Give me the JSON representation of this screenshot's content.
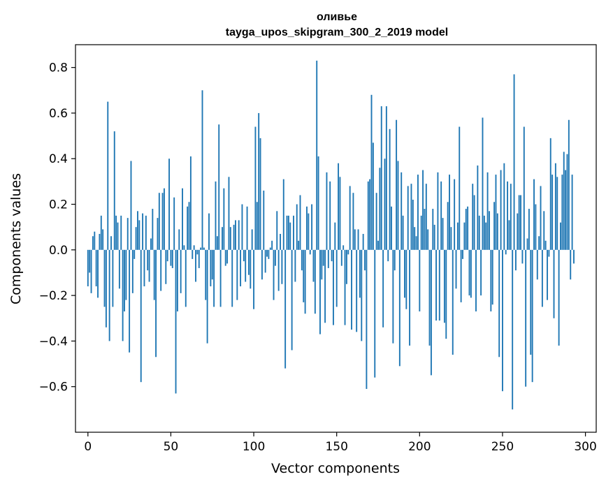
{
  "chart_data": {
    "type": "bar",
    "title": "оливье",
    "subtitle": "tayga_upos_skipgram_300_2_2019 model",
    "xlabel": "Vector components",
    "ylabel": "Components values",
    "xlim": [
      -7.5,
      306.5
    ],
    "ylim": [
      -0.8,
      0.9
    ],
    "xticks": [
      0,
      50,
      100,
      150,
      200,
      250,
      300
    ],
    "xtick_labels": [
      "0",
      "50",
      "100",
      "150",
      "200",
      "250",
      "300"
    ],
    "yticks": [
      -0.6,
      -0.4,
      -0.2,
      0.0,
      0.2,
      0.4,
      0.6,
      0.8
    ],
    "ytick_labels": [
      "−0.6",
      "−0.4",
      "−0.2",
      "0.0",
      "0.2",
      "0.4",
      "0.6",
      "0.8"
    ],
    "bar_color": "#1f77b4",
    "grid": false,
    "values": [
      -0.16,
      -0.1,
      -0.19,
      0.06,
      0.08,
      -0.16,
      -0.21,
      0.07,
      0.15,
      0.09,
      -0.25,
      -0.34,
      0.65,
      -0.4,
      0.06,
      -0.25,
      0.52,
      0.15,
      0.12,
      -0.17,
      0.15,
      -0.4,
      -0.27,
      -0.22,
      0.14,
      -0.45,
      0.39,
      -0.19,
      -0.04,
      0.1,
      0.17,
      0.13,
      -0.58,
      0.16,
      -0.16,
      0.15,
      -0.09,
      -0.14,
      0.05,
      0.18,
      -0.22,
      -0.47,
      0.14,
      0.25,
      -0.18,
      0.25,
      0.27,
      -0.15,
      -0.05,
      0.4,
      -0.07,
      -0.08,
      0.23,
      -0.63,
      -0.27,
      0.09,
      -0.19,
      0.27,
      0.02,
      -0.25,
      0.19,
      0.21,
      0.41,
      -0.04,
      0.02,
      -0.14,
      -0.02,
      -0.08,
      0.01,
      0.7,
      0.01,
      -0.22,
      -0.41,
      0.16,
      -0.16,
      -0.13,
      -0.25,
      0.3,
      0.06,
      0.55,
      -0.25,
      0.1,
      0.27,
      -0.07,
      -0.06,
      0.32,
      0.1,
      -0.25,
      0.11,
      0.13,
      -0.22,
      0.13,
      -0.16,
      0.2,
      -0.05,
      -0.14,
      0.19,
      -0.11,
      -0.17,
      0.09,
      -0.26,
      0.54,
      0.21,
      0.6,
      0.49,
      -0.13,
      0.26,
      -0.1,
      -0.03,
      -0.04,
      0.01,
      0.04,
      -0.22,
      -0.07,
      0.17,
      -0.18,
      0.07,
      -0.15,
      0.31,
      -0.52,
      0.15,
      0.15,
      0.12,
      -0.44,
      0.15,
      -0.14,
      0.2,
      0.04,
      0.24,
      -0.09,
      -0.23,
      -0.28,
      0.19,
      0.16,
      -0.02,
      0.2,
      -0.14,
      -0.28,
      0.83,
      0.41,
      -0.37,
      -0.13,
      -0.07,
      -0.32,
      0.34,
      -0.08,
      0.3,
      -0.05,
      -0.33,
      0.12,
      -0.25,
      0.38,
      0.32,
      -0.07,
      0.02,
      -0.33,
      -0.15,
      -0.02,
      0.28,
      -0.35,
      0.25,
      0.09,
      -0.36,
      0.09,
      -0.21,
      -0.4,
      0.07,
      -0.09,
      -0.61,
      0.3,
      0.31,
      0.68,
      0.47,
      -0.56,
      0.25,
      0.04,
      0.36,
      0.63,
      -0.34,
      0.4,
      0.63,
      -0.05,
      0.53,
      0.19,
      -0.41,
      -0.09,
      0.57,
      0.39,
      -0.51,
      0.34,
      0.15,
      -0.21,
      -0.26,
      0.28,
      -0.42,
      0.29,
      0.22,
      0.1,
      0.06,
      0.33,
      -0.27,
      0.15,
      0.35,
      0.18,
      0.29,
      0.09,
      -0.42,
      -0.55,
      0.18,
      0.11,
      -0.31,
      0.34,
      -0.31,
      0.3,
      0.14,
      -0.32,
      -0.39,
      0.21,
      0.33,
      0.1,
      -0.46,
      0.31,
      -0.17,
      0.12,
      0.54,
      -0.23,
      -0.04,
      0.12,
      0.18,
      0.19,
      -0.2,
      -0.21,
      0.29,
      0.24,
      -0.27,
      0.37,
      0.15,
      -0.2,
      0.58,
      0.15,
      0.12,
      0.34,
      0.17,
      -0.27,
      -0.24,
      0.21,
      0.33,
      0.16,
      -0.47,
      0.35,
      -0.62,
      0.38,
      -0.02,
      0.3,
      0.13,
      0.29,
      -0.7,
      0.77,
      -0.09,
      0.16,
      0.24,
      0.24,
      -0.06,
      0.54,
      -0.6,
      0.05,
      0.18,
      -0.46,
      -0.58,
      0.31,
      0.2,
      -0.13,
      0.06,
      0.28,
      -0.25,
      0.17,
      0.04,
      -0.22,
      -0.03,
      0.49,
      0.33,
      -0.3,
      0.38,
      0.32,
      -0.42,
      0.12,
      0.33,
      0.43,
      0.35,
      0.42,
      0.57,
      -0.13,
      0.33,
      -0.06
    ]
  }
}
